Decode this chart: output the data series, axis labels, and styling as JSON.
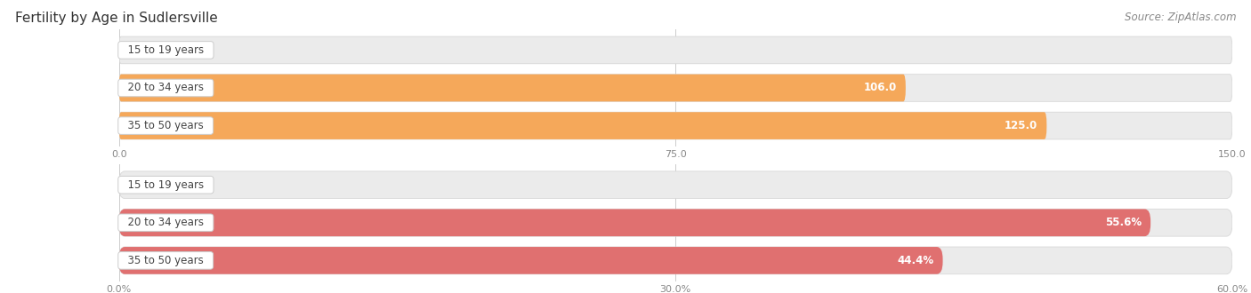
{
  "title": "Fertility by Age in Sudlersville",
  "source": "Source: ZipAtlas.com",
  "top_chart": {
    "categories": [
      "15 to 19 years",
      "20 to 34 years",
      "35 to 50 years"
    ],
    "values": [
      0.0,
      106.0,
      125.0
    ],
    "xlim": [
      0,
      150
    ],
    "xticks": [
      0.0,
      75.0,
      150.0
    ],
    "xtick_labels": [
      "0.0",
      "75.0",
      "150.0"
    ],
    "bar_color": "#F5A85A",
    "bar_bg_color": "#EBEBEB",
    "value_threshold": 15
  },
  "bottom_chart": {
    "categories": [
      "15 to 19 years",
      "20 to 34 years",
      "35 to 50 years"
    ],
    "values": [
      0.0,
      55.6,
      44.4
    ],
    "xlim": [
      0,
      60
    ],
    "xticks": [
      0.0,
      30.0,
      60.0
    ],
    "xtick_labels": [
      "0.0%",
      "30.0%",
      "60.0%"
    ],
    "bar_color": "#E07070",
    "bar_bg_color": "#EBEBEB",
    "value_threshold": 5
  },
  "label_fontsize": 8.5,
  "title_fontsize": 11,
  "source_fontsize": 8.5,
  "category_fontsize": 8.5,
  "tick_fontsize": 8,
  "background_color": "#FFFFFF",
  "bar_height": 0.72,
  "grid_color": "#CCCCCC"
}
